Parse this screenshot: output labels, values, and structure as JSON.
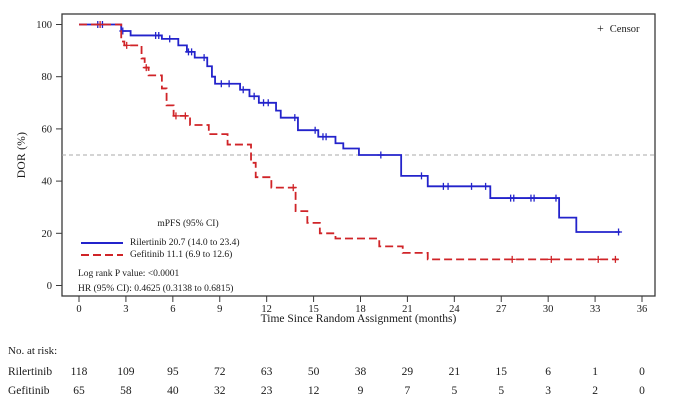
{
  "chart_data": {
    "type": "line",
    "subtype": "kaplan-meier-step",
    "title": "",
    "xlabel": "Time Since Random Assignment (months)",
    "ylabel": "DOR (%)",
    "xlim": [
      0,
      36
    ],
    "ylim": [
      0,
      100
    ],
    "x_ticks": [
      0,
      3,
      6,
      9,
      12,
      15,
      18,
      21,
      24,
      27,
      30,
      33,
      36
    ],
    "y_ticks": [
      0,
      20,
      40,
      60,
      80,
      100
    ],
    "grid": false,
    "reference_line_y": 50,
    "reference_line_color": "#a8a8a8",
    "frame_color": "#3a3a3a",
    "censor_key": {
      "marker": "+",
      "label": "Censor"
    },
    "series": [
      {
        "name": "Rilertinib",
        "color": "#2323cb",
        "line_style": "solid",
        "end_t": 34.6,
        "steps": [
          [
            0,
            100
          ],
          [
            2.7,
            97.5
          ],
          [
            3.3,
            95.8
          ],
          [
            5.3,
            94.5
          ],
          [
            6.35,
            92
          ],
          [
            6.9,
            89.5
          ],
          [
            7.4,
            87.3
          ],
          [
            8.2,
            84
          ],
          [
            8.5,
            80
          ],
          [
            8.7,
            77.3
          ],
          [
            10.3,
            75
          ],
          [
            10.9,
            72.5
          ],
          [
            11.5,
            70
          ],
          [
            12.6,
            67
          ],
          [
            12.9,
            64.3
          ],
          [
            14,
            59.5
          ],
          [
            15.3,
            57
          ],
          [
            16.4,
            54.5
          ],
          [
            16.9,
            52.5
          ],
          [
            17.9,
            50
          ],
          [
            20.6,
            42
          ],
          [
            22.3,
            38
          ],
          [
            26.3,
            33.5
          ],
          [
            30.7,
            26
          ],
          [
            31.8,
            20.5
          ]
        ],
        "censors": [
          [
            1.2,
            100
          ],
          [
            1.5,
            100
          ],
          [
            2.8,
            97.5
          ],
          [
            4.9,
            95.8
          ],
          [
            5.1,
            95.8
          ],
          [
            5.8,
            94.5
          ],
          [
            7,
            89.5
          ],
          [
            7.2,
            89.5
          ],
          [
            8,
            87.3
          ],
          [
            9.1,
            77.3
          ],
          [
            9.6,
            77.3
          ],
          [
            10.5,
            75
          ],
          [
            11.2,
            72.5
          ],
          [
            11.8,
            70
          ],
          [
            12.1,
            70
          ],
          [
            13.8,
            64.3
          ],
          [
            15.1,
            59.5
          ],
          [
            15.6,
            57
          ],
          [
            15.8,
            57
          ],
          [
            19.3,
            50
          ],
          [
            21.9,
            42
          ],
          [
            23.3,
            38
          ],
          [
            23.6,
            38
          ],
          [
            25.1,
            38
          ],
          [
            26,
            38
          ],
          [
            27.6,
            33.5
          ],
          [
            27.8,
            33.5
          ],
          [
            28.9,
            33.5
          ],
          [
            29.1,
            33.5
          ],
          [
            30.5,
            33.5
          ],
          [
            34.5,
            20.5
          ]
        ]
      },
      {
        "name": "Gefitinib",
        "color": "#d02428",
        "line_style": "dashed",
        "end_t": 34.5,
        "steps": [
          [
            0,
            100
          ],
          [
            2.7,
            93.5
          ],
          [
            2.9,
            92
          ],
          [
            4,
            87
          ],
          [
            4.2,
            83.5
          ],
          [
            4.45,
            80.5
          ],
          [
            5.3,
            75.5
          ],
          [
            5.6,
            69
          ],
          [
            6.05,
            65
          ],
          [
            7.1,
            61.5
          ],
          [
            8.3,
            58
          ],
          [
            9.5,
            54
          ],
          [
            11,
            47
          ],
          [
            11.3,
            41.5
          ],
          [
            12.3,
            37.5
          ],
          [
            13.85,
            28.5
          ],
          [
            14.6,
            24
          ],
          [
            15.4,
            20
          ],
          [
            16.4,
            18
          ],
          [
            19.2,
            15
          ],
          [
            20.7,
            12.5
          ],
          [
            22.3,
            10
          ]
        ],
        "censors": [
          [
            1.35,
            100
          ],
          [
            3.05,
            92
          ],
          [
            4.3,
            83.5
          ],
          [
            6.2,
            65
          ],
          [
            6.8,
            65
          ],
          [
            13.7,
            37.5
          ],
          [
            27.7,
            10
          ],
          [
            30.2,
            10
          ],
          [
            33.2,
            10
          ],
          [
            34.3,
            10
          ]
        ]
      }
    ],
    "annotations": {
      "mpfs_header": "mPFS (95% CI)",
      "legend": [
        {
          "label": "Rilertinib 20.7 (14.0 to 23.4)"
        },
        {
          "label": "Gefitinib 11.1 (6.9 to 12.6)"
        }
      ],
      "logrank": "Log rank P value: <0.0001",
      "hazard_ratio": "HR (95% CI): 0.4625 (0.3138 to 0.6815)"
    },
    "risk_table": {
      "header": "No. at risk:",
      "rows": [
        {
          "label": "Rilertinib",
          "values": [
            118,
            109,
            95,
            72,
            63,
            50,
            38,
            29,
            21,
            15,
            6,
            1,
            0
          ]
        },
        {
          "label": "Gefitinib",
          "values": [
            65,
            58,
            40,
            32,
            23,
            12,
            9,
            7,
            5,
            5,
            3,
            2,
            0
          ]
        }
      ]
    }
  }
}
